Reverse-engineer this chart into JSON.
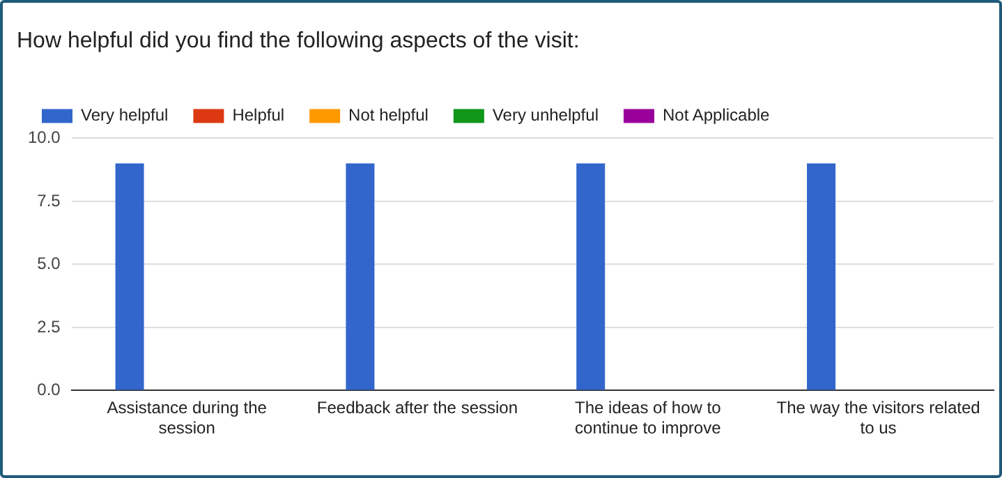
{
  "chart_data": {
    "type": "bar",
    "title": "How helpful did you find the following aspects of the visit:",
    "categories": [
      "Assistance during the session",
      "Feedback after the session",
      "The ideas of how to continue to improve",
      "The way the visitors related to us"
    ],
    "series": [
      {
        "name": "Very helpful",
        "color": "#3366cc",
        "values": [
          9,
          9,
          9,
          9
        ]
      },
      {
        "name": "Helpful",
        "color": "#dc3912",
        "values": [
          0,
          0,
          0,
          0
        ]
      },
      {
        "name": "Not helpful",
        "color": "#ff9900",
        "values": [
          0,
          0,
          0,
          0
        ]
      },
      {
        "name": "Very unhelpful",
        "color": "#109618",
        "values": [
          0,
          0,
          0,
          0
        ]
      },
      {
        "name": "Not Applicable",
        "color": "#990099",
        "values": [
          0,
          0,
          0,
          0
        ]
      }
    ],
    "ylim": [
      0,
      10
    ],
    "yticks": [
      {
        "value": 0,
        "label": "0.0"
      },
      {
        "value": 2.5,
        "label": "2.5"
      },
      {
        "value": 5,
        "label": "5.0"
      },
      {
        "value": 7.5,
        "label": "7.5"
      },
      {
        "value": 10,
        "label": "10.0"
      }
    ],
    "grid": "y",
    "legend": "top left"
  }
}
